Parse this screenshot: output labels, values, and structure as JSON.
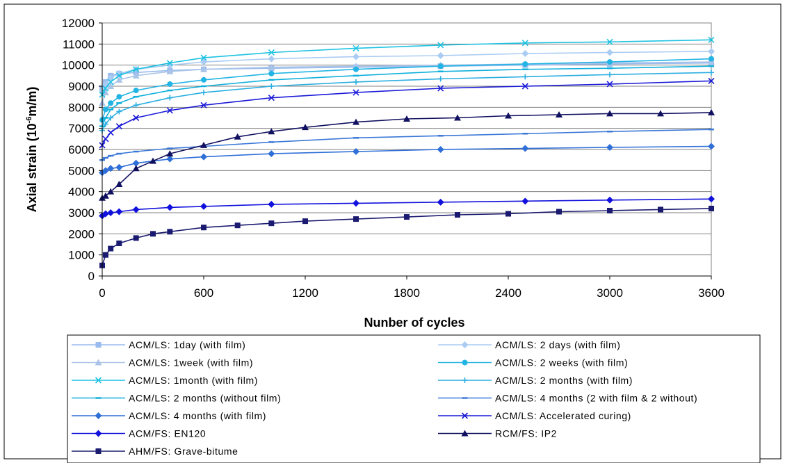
{
  "chart_data": {
    "type": "line",
    "title": "",
    "xlabel": "Nunber of cycles",
    "ylabel_main": "Axial strain (10",
    "ylabel_sup": "-6",
    "ylabel_tail": "m/m)",
    "xlim": [
      0,
      3600
    ],
    "ylim": [
      0,
      12000
    ],
    "x_ticks": [
      "0",
      "600",
      "1200",
      "1800",
      "2400",
      "3000",
      "3600"
    ],
    "y_ticks": [
      "0",
      "1000",
      "2000",
      "3000",
      "4000",
      "5000",
      "6000",
      "7000",
      "8000",
      "9000",
      "10000",
      "11000",
      "12000"
    ],
    "grid": "horizontal",
    "legend_position": "bottom",
    "series": [
      {
        "name": "ACM/LS: 1day (with film)",
        "color": "#99bbee",
        "marker": "square",
        "x": [
          0,
          20,
          50,
          100,
          200,
          400,
          600,
          1000,
          1500,
          2000,
          2500,
          3000,
          3600
        ],
        "y": [
          8900,
          9200,
          9500,
          9600,
          9650,
          9750,
          9800,
          9850,
          9900,
          9950,
          10000,
          10050,
          10100
        ]
      },
      {
        "name": "ACM/LS: 2 days (with film)",
        "color": "#aaccf2",
        "marker": "diamond",
        "x": [
          0,
          20,
          50,
          100,
          200,
          400,
          600,
          1000,
          1500,
          2000,
          2500,
          3000,
          3600
        ],
        "y": [
          8800,
          9100,
          9400,
          9600,
          9800,
          10000,
          10150,
          10300,
          10400,
          10450,
          10550,
          10600,
          10650
        ]
      },
      {
        "name": "ACM/LS: 1week (with film)",
        "color": "#aac4e8",
        "marker": "triangle",
        "x": [
          0,
          20,
          50,
          100,
          200,
          400,
          600,
          1000,
          1500,
          2000,
          2500,
          3000,
          3600
        ],
        "y": [
          8200,
          8700,
          9000,
          9300,
          9500,
          9700,
          9800,
          9900,
          9950,
          10000,
          10050,
          10100,
          10150
        ]
      },
      {
        "name": "ACM/LS: 2 weeks (with film)",
        "color": "#22b4e4",
        "marker": "circle",
        "x": [
          0,
          20,
          50,
          100,
          200,
          400,
          600,
          1000,
          1500,
          2000,
          2500,
          3000,
          3600
        ],
        "y": [
          7400,
          7900,
          8200,
          8500,
          8800,
          9100,
          9300,
          9600,
          9800,
          9950,
          10050,
          10150,
          10300
        ]
      },
      {
        "name": "ACM/LS: 1month (with film)",
        "color": "#1ec2e2",
        "marker": "x",
        "x": [
          0,
          20,
          50,
          100,
          200,
          400,
          600,
          1000,
          1500,
          2000,
          2500,
          3000,
          3600
        ],
        "y": [
          8600,
          8900,
          9200,
          9500,
          9800,
          10100,
          10350,
          10600,
          10800,
          10950,
          11050,
          11100,
          11200
        ]
      },
      {
        "name": "ACM/LS: 2 months (with film)",
        "color": "#2aaee0",
        "marker": "plus",
        "x": [
          0,
          20,
          50,
          100,
          200,
          400,
          600,
          1000,
          1500,
          2000,
          2500,
          3000,
          3600
        ],
        "y": [
          6900,
          7200,
          7500,
          7800,
          8100,
          8450,
          8700,
          9000,
          9200,
          9350,
          9450,
          9550,
          9650
        ]
      },
      {
        "name": "ACM/LS: 2 months (without film)",
        "color": "#11b0dc",
        "marker": "dash",
        "x": [
          0,
          20,
          50,
          100,
          200,
          400,
          600,
          1000,
          1500,
          2000,
          2500,
          3000,
          3600
        ],
        "y": [
          7100,
          7500,
          7900,
          8200,
          8500,
          8800,
          9000,
          9300,
          9500,
          9700,
          9800,
          9850,
          9950
        ]
      },
      {
        "name": "ACM/LS: 4 months (2 with film & 2 without)",
        "color": "#3a78d8",
        "marker": "dash",
        "x": [
          0,
          20,
          50,
          100,
          200,
          400,
          600,
          1000,
          1500,
          2000,
          2500,
          3000,
          3600
        ],
        "y": [
          5500,
          5600,
          5700,
          5800,
          5900,
          6050,
          6150,
          6350,
          6550,
          6650,
          6750,
          6850,
          6950
        ]
      },
      {
        "name": "ACM/LS: 4 months (with film)",
        "color": "#2f6fd8",
        "marker": "diamond",
        "x": [
          0,
          20,
          50,
          100,
          200,
          400,
          600,
          1000,
          1500,
          2000,
          2500,
          3000,
          3600
        ],
        "y": [
          4900,
          5000,
          5100,
          5150,
          5350,
          5550,
          5650,
          5800,
          5900,
          6000,
          6050,
          6100,
          6150
        ]
      },
      {
        "name": "ACM/LS: Accelerated curing)",
        "color": "#1a1ad8",
        "marker": "x",
        "x": [
          0,
          20,
          50,
          100,
          200,
          400,
          600,
          1000,
          1500,
          2000,
          2500,
          3000,
          3600
        ],
        "y": [
          6200,
          6500,
          6800,
          7100,
          7500,
          7850,
          8100,
          8450,
          8700,
          8900,
          9000,
          9100,
          9250
        ]
      },
      {
        "name": "ACM/FS: EN120",
        "color": "#1111dd",
        "marker": "diamond",
        "x": [
          0,
          20,
          50,
          100,
          200,
          400,
          600,
          1000,
          1500,
          2000,
          2500,
          3000,
          3600
        ],
        "y": [
          2850,
          2950,
          3000,
          3050,
          3150,
          3250,
          3300,
          3400,
          3450,
          3500,
          3550,
          3600,
          3650
        ]
      },
      {
        "name": "RCM/FS: IP2",
        "color": "#101060",
        "marker": "triangle",
        "x": [
          0,
          20,
          50,
          100,
          200,
          300,
          400,
          600,
          800,
          1000,
          1200,
          1500,
          1800,
          2100,
          2400,
          2700,
          3000,
          3300,
          3600
        ],
        "y": [
          3700,
          3800,
          4000,
          4350,
          5100,
          5450,
          5800,
          6200,
          6600,
          6850,
          7050,
          7300,
          7450,
          7500,
          7600,
          7650,
          7700,
          7700,
          7750
        ]
      },
      {
        "name": "AHM/FS: Grave-bitume",
        "color": "#1a1a70",
        "marker": "square",
        "x": [
          0,
          20,
          50,
          100,
          200,
          300,
          400,
          600,
          800,
          1000,
          1200,
          1500,
          1800,
          2100,
          2400,
          2700,
          3000,
          3300,
          3600
        ],
        "y": [
          500,
          1000,
          1300,
          1550,
          1800,
          2000,
          2100,
          2300,
          2400,
          2500,
          2600,
          2700,
          2800,
          2900,
          2950,
          3050,
          3100,
          3150,
          3200
        ]
      }
    ]
  }
}
